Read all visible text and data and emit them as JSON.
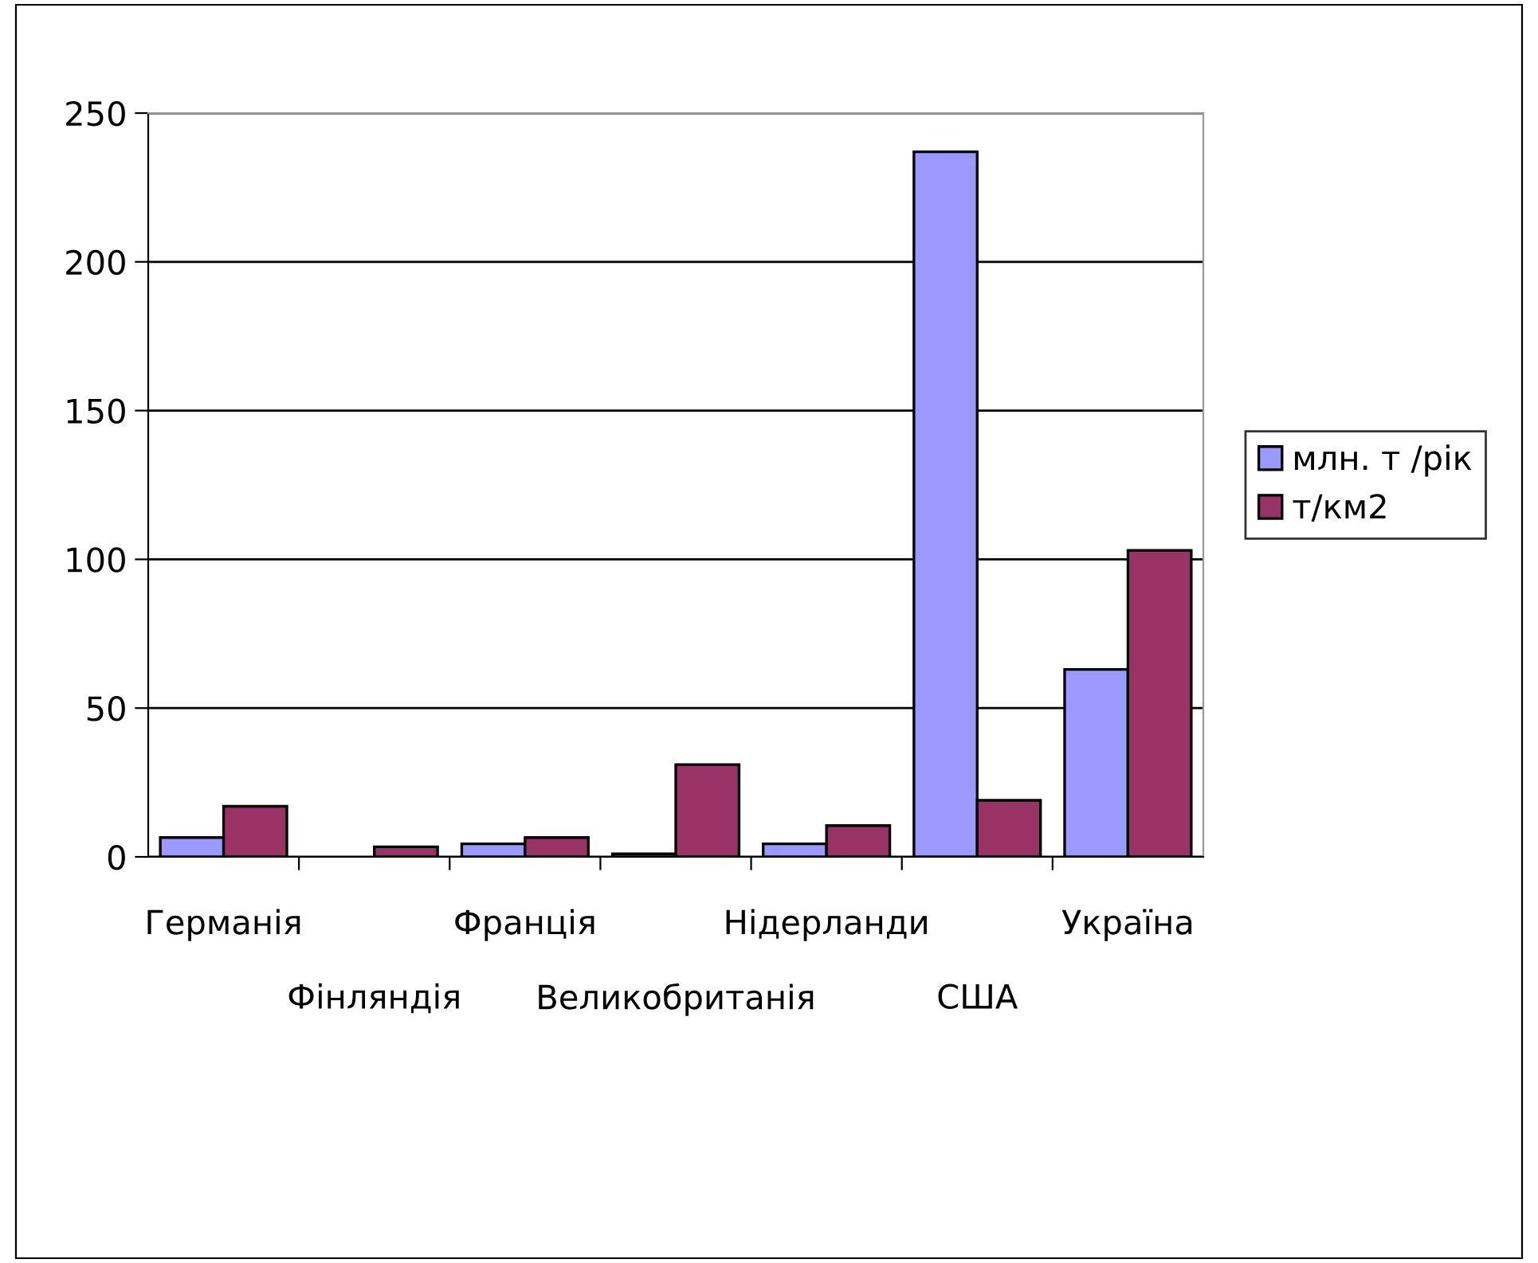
{
  "chart_data": {
    "type": "bar",
    "categories": [
      "Германія",
      "Фінляндія",
      "Франція",
      "Великобританія",
      "Нідерланди",
      "США",
      "Україна"
    ],
    "series": [
      {
        "name": "млн. т /рік",
        "color": "#9999ff",
        "values": [
          6.5,
          null,
          4.4,
          1,
          4.4,
          237,
          63
        ]
      },
      {
        "name": "т/км2",
        "color": "#993366",
        "values": [
          17,
          3.4,
          6.5,
          31,
          10.5,
          19,
          103
        ]
      }
    ],
    "ylim": [
      0,
      250
    ],
    "yticks": [
      0,
      50,
      100,
      150,
      200,
      250
    ],
    "grid": "y",
    "legend": "right"
  }
}
